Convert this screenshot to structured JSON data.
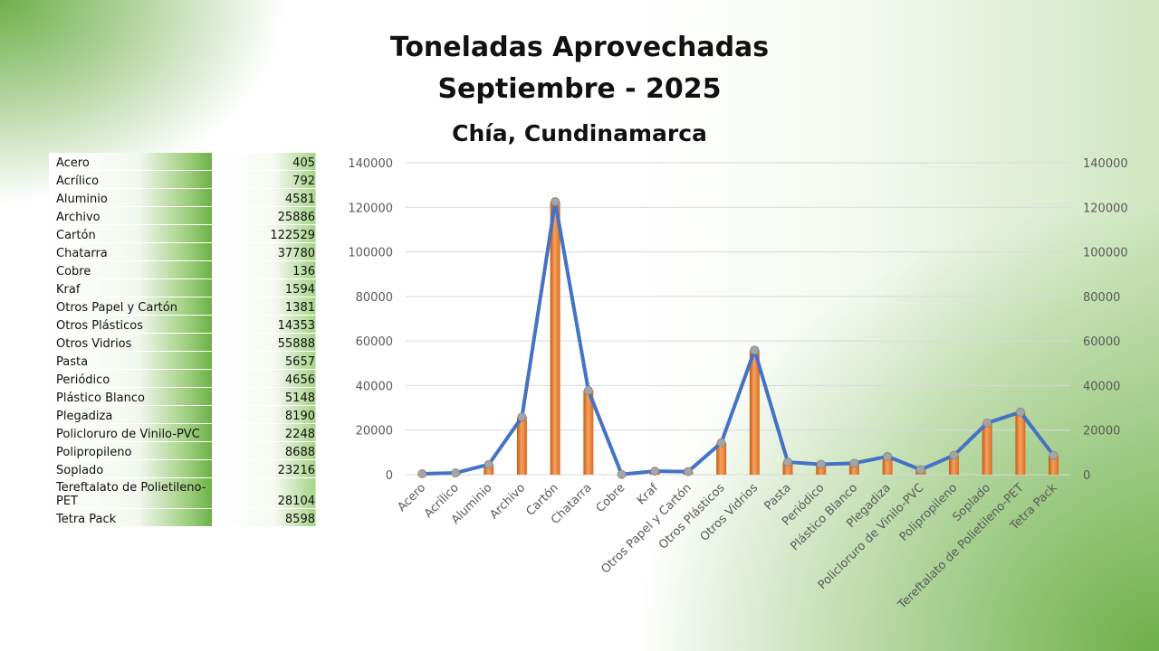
{
  "title": {
    "line1": "Toneladas Aprovechadas",
    "line2": "Septiembre - 2025",
    "line3": "Chía, Cundinamarca"
  },
  "table": [
    {
      "name": "Acero",
      "value": "405"
    },
    {
      "name": "Acrílico",
      "value": "792"
    },
    {
      "name": "Aluminio",
      "value": "4581"
    },
    {
      "name": "Archivo",
      "value": "25886"
    },
    {
      "name": "Cartón",
      "value": "122529"
    },
    {
      "name": "Chatarra",
      "value": "37780"
    },
    {
      "name": "Cobre",
      "value": "136"
    },
    {
      "name": "Kraf",
      "value": "1594"
    },
    {
      "name": "Otros Papel y Cartón",
      "value": "1381"
    },
    {
      "name": "Otros Plásticos",
      "value": "14353"
    },
    {
      "name": "Otros Vidrios",
      "value": "55888"
    },
    {
      "name": "Pasta",
      "value": "5657"
    },
    {
      "name": "Periódico",
      "value": "4656"
    },
    {
      "name": "Plástico Blanco",
      "value": "5148"
    },
    {
      "name": "Plegadiza",
      "value": "8190"
    },
    {
      "name": "Policloruro de Vinilo-PVC",
      "value": "2248"
    },
    {
      "name": "Polipropileno",
      "value": "8688"
    },
    {
      "name": "Soplado",
      "value": "23216"
    },
    {
      "name": "Tereftalato de Polietileno-PET",
      "value": "28104"
    },
    {
      "name": "Tetra Pack",
      "value": "8598"
    }
  ],
  "chart_data": {
    "type": "bar",
    "overlay": "line",
    "categories": [
      "Acero",
      "Acrílico",
      "Aluminio",
      "Archivo",
      "Cartón",
      "Chatarra",
      "Cobre",
      "Kraf",
      "Otros Papel y Cartón",
      "Otros Plásticos",
      "Otros Vidrios",
      "Pasta",
      "Periódico",
      "Plástico Blanco",
      "Plegadiza",
      "Policloruro de Vinilo-PVC",
      "Polipropileno",
      "Soplado",
      "Tereftalato de Polietileno-PET",
      "Tetra Pack"
    ],
    "values": [
      405,
      792,
      4581,
      25886,
      122529,
      37780,
      136,
      1594,
      1381,
      14353,
      55888,
      5657,
      4656,
      5148,
      8190,
      2248,
      8688,
      23216,
      28104,
      8598
    ],
    "ylim": [
      0,
      140000
    ],
    "yticks": [
      "0",
      "20000",
      "40000",
      "60000",
      "80000",
      "100000",
      "120000",
      "140000"
    ],
    "secondary_axis": true,
    "grid": true,
    "legend": "none",
    "colors": {
      "bar": "#ed7d31",
      "bar_dark": "#c55a11",
      "line": "#4472c4",
      "marker": "#a5a5a5"
    }
  }
}
